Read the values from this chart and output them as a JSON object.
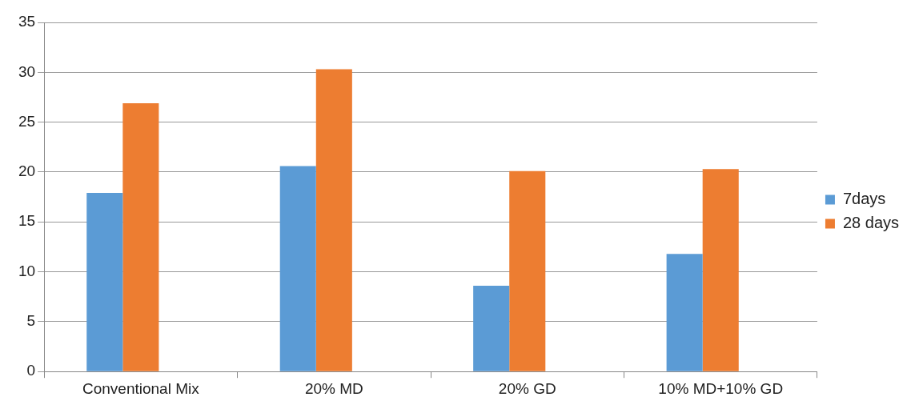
{
  "chart_data": {
    "type": "bar",
    "categories": [
      "Conventional Mix",
      "20% MD",
      "20% GD",
      "10% MD+10% GD"
    ],
    "series": [
      {
        "name": "7days",
        "color": "#5b9bd5",
        "values": [
          17.9,
          20.6,
          8.6,
          11.8
        ]
      },
      {
        "name": "28 days",
        "color": "#ed7d31",
        "values": [
          26.9,
          30.3,
          20.1,
          20.3
        ]
      },
      {
        "color": "#a5a5a5",
        "values": [
          null,
          null,
          null,
          null
        ]
      }
    ],
    "ylim": [
      0,
      35
    ],
    "yticks": [
      0,
      5,
      10,
      15,
      20,
      25,
      30,
      35
    ],
    "grid": "y",
    "legend": "right"
  }
}
